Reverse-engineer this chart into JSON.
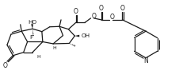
{
  "bg_color": "#ffffff",
  "line_color": "#1a1a1a",
  "lw": 0.9,
  "figsize": [
    2.32,
    1.03
  ],
  "dpi": 100,
  "xlim": [
    0,
    232
  ],
  "ylim": [
    0,
    103
  ]
}
